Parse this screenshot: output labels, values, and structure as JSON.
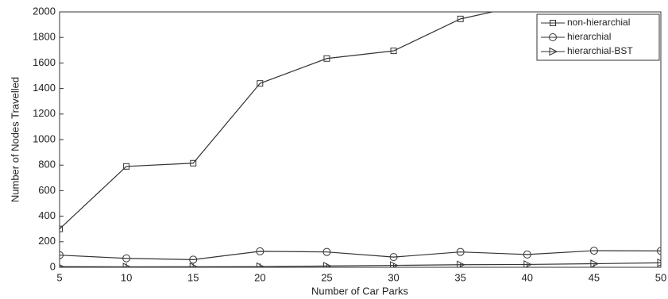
{
  "chart_data": {
    "type": "line",
    "x_label": "Number of Car Parks",
    "y_label": "Number of Nodes Travelled",
    "x": [
      5,
      10,
      15,
      20,
      25,
      30,
      35,
      40,
      45,
      50
    ],
    "series": [
      {
        "name": "non-hierarchial",
        "color": "#333333",
        "marker": "square",
        "values": [
          300,
          790,
          815,
          1440,
          1635,
          1695,
          1945,
          2060,
          null,
          null
        ]
      },
      {
        "name": "hierarchial",
        "color": "#333333",
        "marker": "circle",
        "values": [
          95,
          70,
          60,
          125,
          120,
          80,
          120,
          100,
          130,
          128
        ]
      },
      {
        "name": "hierarchial-BST",
        "color": "#333333",
        "marker": "triangle-right",
        "values": [
          5,
          3,
          4,
          5,
          10,
          15,
          20,
          22,
          28,
          35
        ]
      }
    ],
    "xlim": [
      5,
      50
    ],
    "xticks": [
      5,
      10,
      15,
      20,
      25,
      30,
      35,
      40,
      45,
      50
    ],
    "ylim": [
      0,
      2000
    ],
    "yticks": [
      0,
      200,
      400,
      600,
      800,
      1000,
      1200,
      1400,
      1600,
      1800,
      2000
    ],
    "legend": "upper right"
  }
}
